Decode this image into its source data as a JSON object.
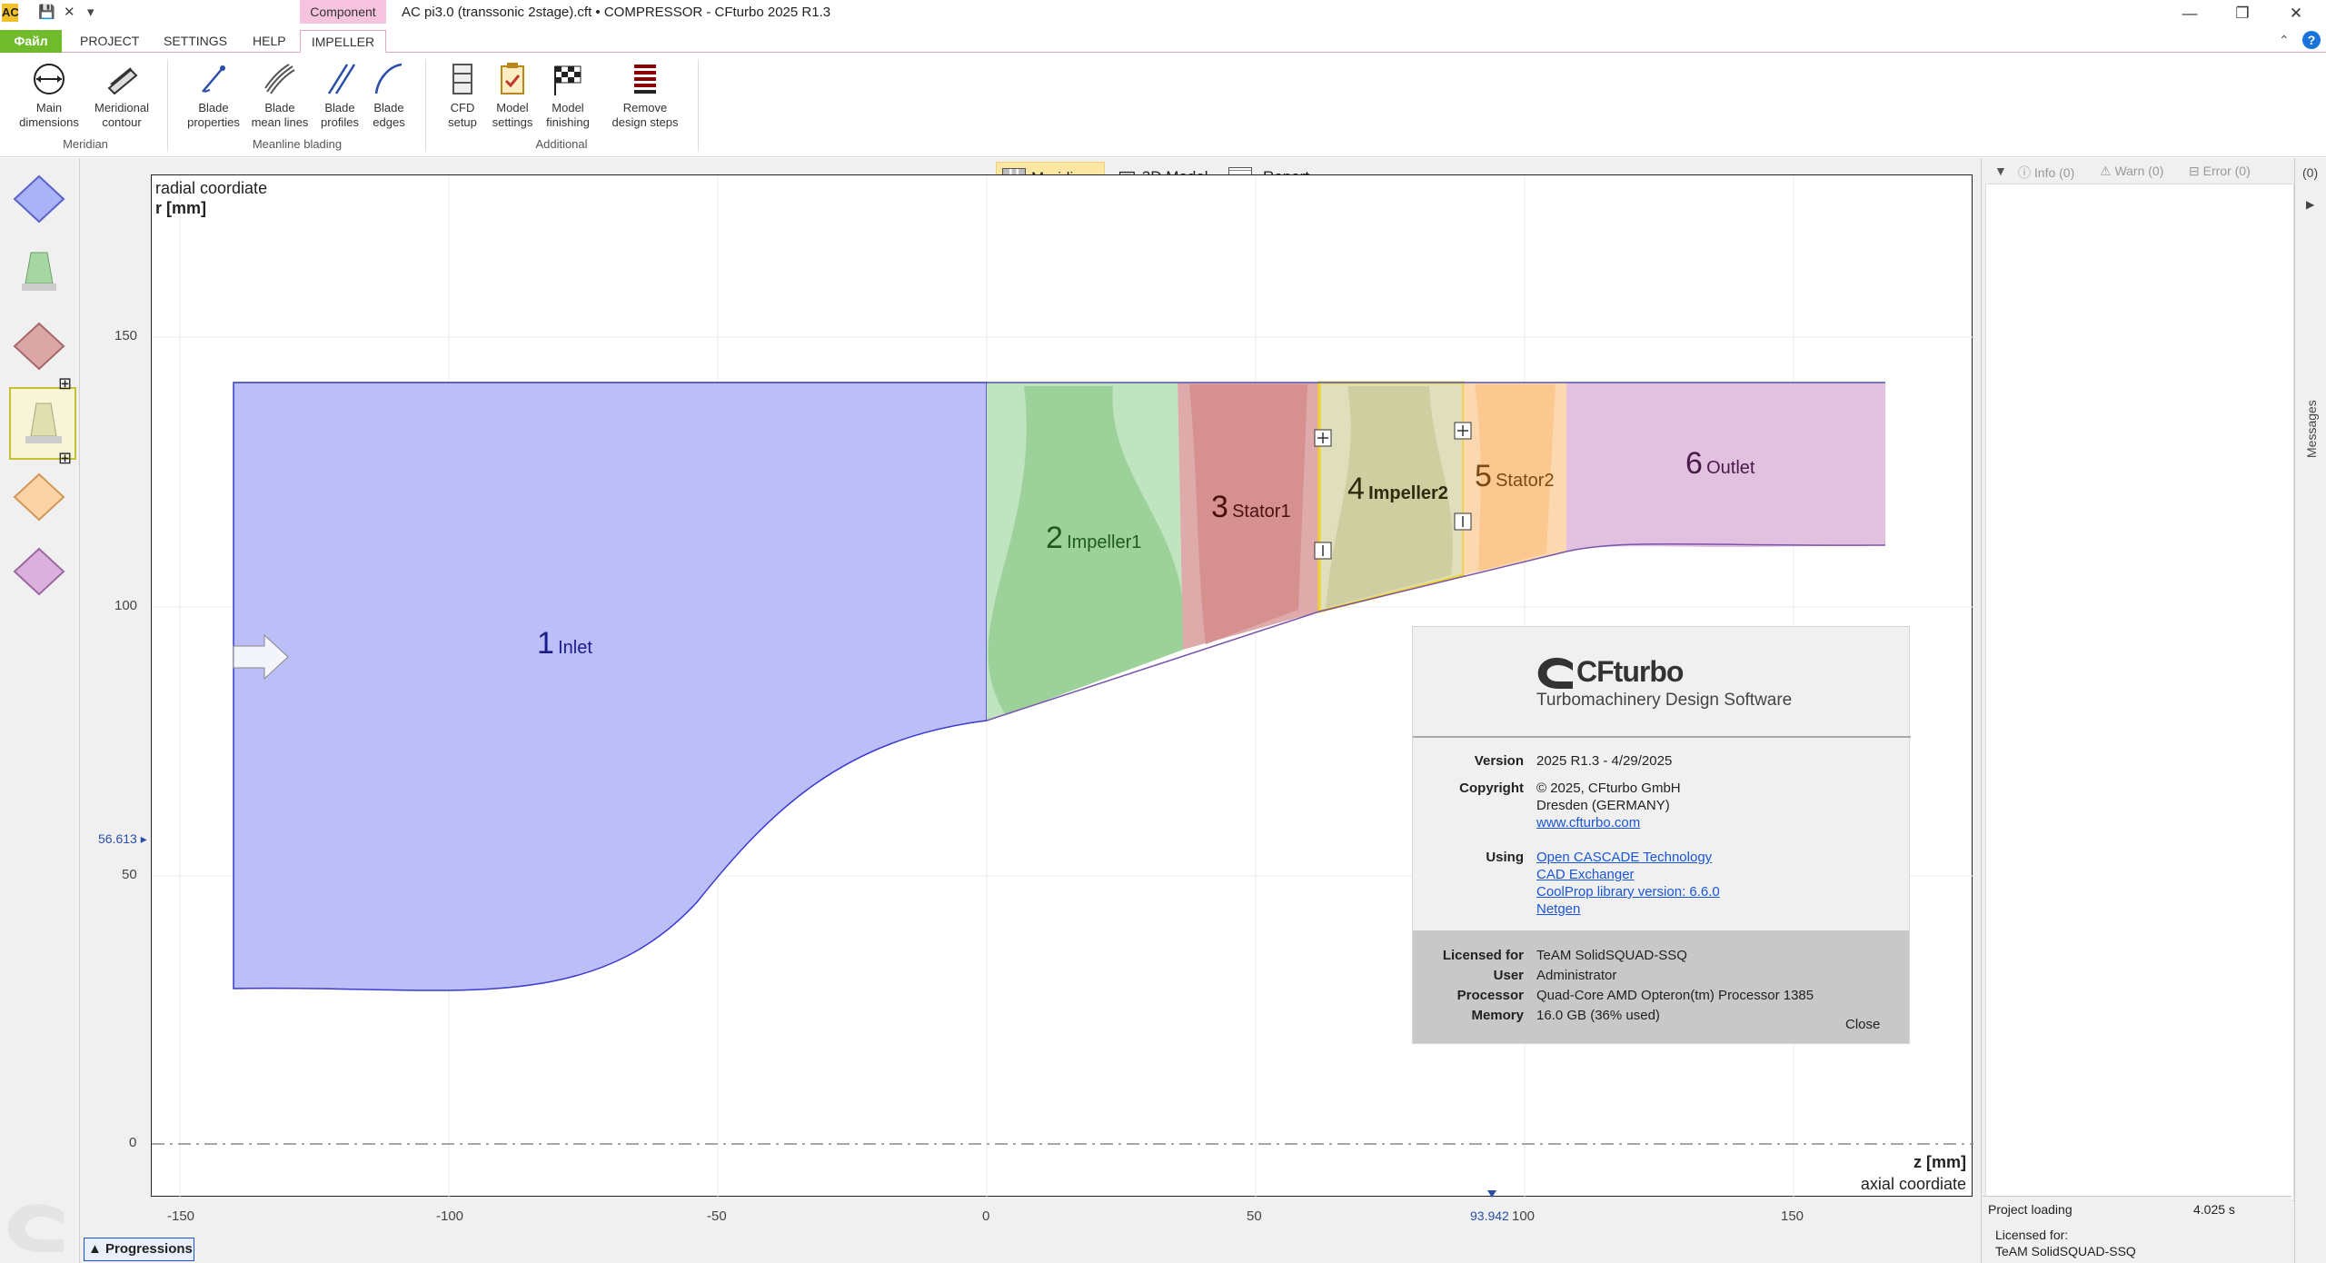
{
  "window": {
    "title": "AC pi3.0 (transsonic 2stage).cft • COMPRESSOR - CFturbo 2025 R1.3",
    "context_tab": "Component",
    "app_icon": "AC"
  },
  "tabs": {
    "file": "Файл",
    "project": "PROJECT",
    "settings": "SETTINGS",
    "help": "HELP",
    "impeller": "IMPELLER",
    "help_icon": "?"
  },
  "ribbon": {
    "groups": {
      "meridian": "Meridian",
      "meanline": "Meanline blading",
      "additional": "Additional"
    },
    "buttons": {
      "main_dimensions": [
        "Main",
        "dimensions"
      ],
      "meridional_contour": [
        "Meridional",
        "contour"
      ],
      "blade_properties": [
        "Blade",
        "properties"
      ],
      "blade_mean_lines": [
        "Blade",
        "mean lines"
      ],
      "blade_profiles": [
        "Blade",
        "profiles"
      ],
      "blade_edges": [
        "Blade",
        "edges"
      ],
      "cfd_setup": [
        "CFD",
        "setup"
      ],
      "model_settings": [
        "Model",
        "settings"
      ],
      "model_finishing": [
        "Model",
        "finishing"
      ],
      "remove_design_steps": [
        "Remove",
        "design steps"
      ]
    }
  },
  "view_tabs": {
    "meridian": "Meridian",
    "model3d": "3D Model",
    "report": "Report"
  },
  "plot": {
    "y_title": "radial coordiate",
    "y_unit": "r [mm]",
    "x_unit": "z [mm]",
    "x_title": "axial coordiate",
    "x_ticks": [
      "-150",
      "-100",
      "-50",
      "0",
      "50",
      "100",
      "150"
    ],
    "y_ticks": [
      "150",
      "100",
      "50",
      "0"
    ],
    "cursor_x": "93.942",
    "cursor_y": "56.613",
    "components": [
      {
        "num": "1",
        "name": "Inlet",
        "color": "#bcbef8"
      },
      {
        "num": "2",
        "name": "Impeller1",
        "color": "#a6d6a2"
      },
      {
        "num": "3",
        "name": "Stator1",
        "color": "#d8a0a0"
      },
      {
        "num": "4",
        "name": "Impeller2",
        "color": "#d8d7a8"
      },
      {
        "num": "5",
        "name": "Stator2",
        "color": "#fbd3a6"
      },
      {
        "num": "6",
        "name": "Outlet",
        "color": "#e1c0e0"
      }
    ]
  },
  "about": {
    "brand": "CFturbo",
    "tagline": "Turbomachinery Design Software",
    "version_label": "Version",
    "version": "2025 R1.3  -  4/29/2025",
    "copyright_label": "Copyright",
    "copyright_lines": [
      "© 2025, CFturbo GmbH",
      "Dresden (GERMANY)"
    ],
    "website": "www.cfturbo.com",
    "using_label": "Using",
    "using_links": [
      "Open CASCADE Technology",
      "CAD Exchanger",
      "CoolProp library version: 6.6.0",
      "Netgen"
    ],
    "licensed_label": "Licensed for",
    "licensed": "TeAM SolidSQUAD-SSQ",
    "user_label": "User",
    "user": "Administrator",
    "processor_label": "Processor",
    "processor": "Quad-Core AMD Opteron(tm) Processor 1385",
    "memory_label": "Memory",
    "memory": "16.0 GB (36% used)",
    "close": "Close"
  },
  "messages": {
    "info": "Info (0)",
    "warn": "Warn (0)",
    "error": "Error (0)",
    "count": "(0)",
    "panel_label": "Messages"
  },
  "status": {
    "task": "Project loading",
    "time": "4.025 s",
    "licensed_label": "Licensed for:",
    "licensed_value": "TeAM SolidSQUAD-SSQ"
  },
  "progress_label": "Progressions"
}
